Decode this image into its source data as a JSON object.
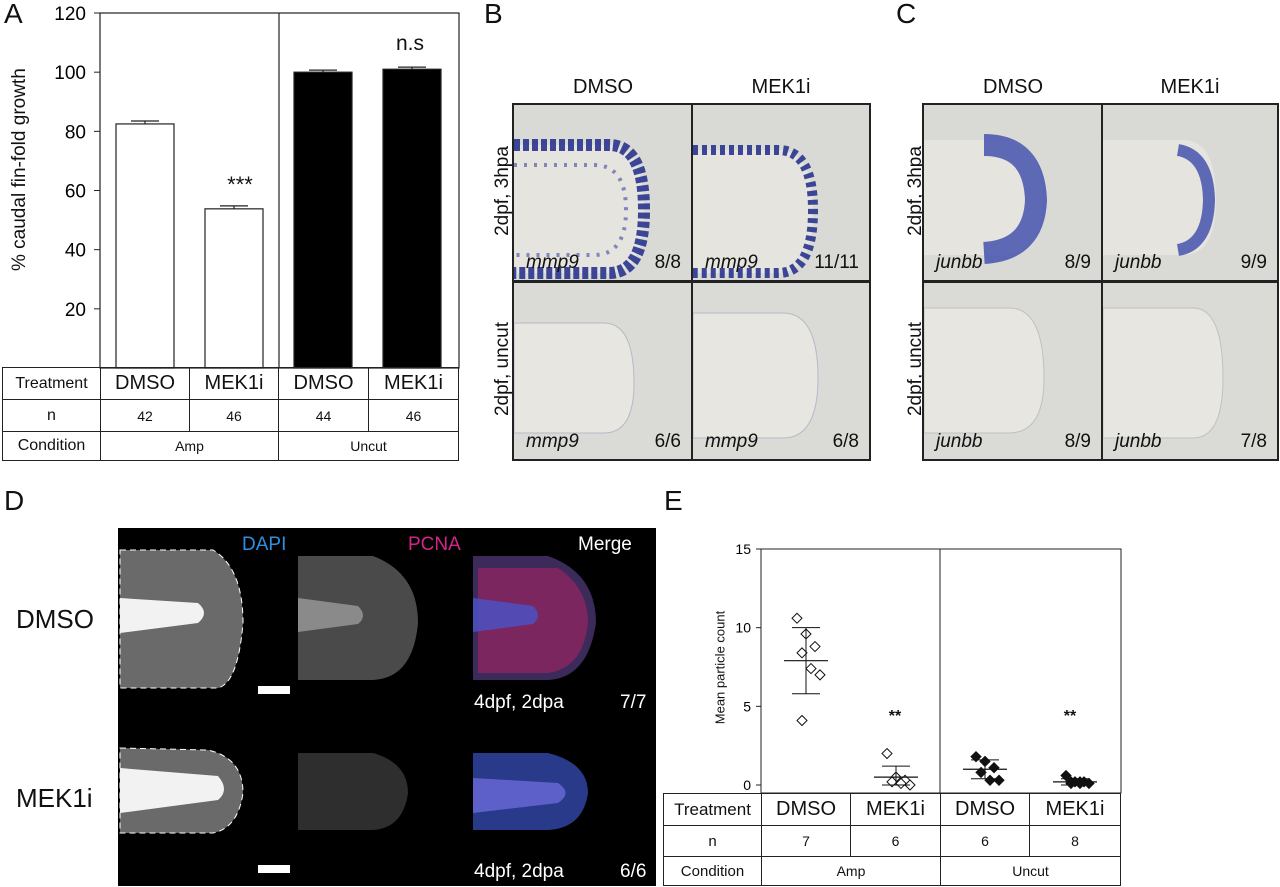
{
  "panels": {
    "A": {
      "letter": "A",
      "ylabel": "% caudal fin-fold growth",
      "yticks": [
        "120",
        "100",
        "80",
        "60",
        "40",
        "20"
      ],
      "significance": [
        "***",
        "n.s"
      ],
      "table": {
        "row_labels": [
          "Treatment",
          "n",
          "Condition"
        ],
        "treatments": [
          "DMSO",
          "MEK1i",
          "DMSO",
          "MEK1i"
        ],
        "n_values": [
          "42",
          "46",
          "44",
          "46"
        ],
        "conditions": [
          "Amp",
          "Uncut"
        ]
      }
    },
    "B": {
      "letter": "B",
      "col_heads": [
        "DMSO",
        "MEK1i"
      ],
      "row_heads": [
        "2dpf, 3hpa",
        "2dpf, uncut"
      ],
      "cells": [
        {
          "gene": "mmp9",
          "ratio": "8/8"
        },
        {
          "gene": "mmp9",
          "ratio": "11/11"
        },
        {
          "gene": "mmp9",
          "ratio": "6/6"
        },
        {
          "gene": "mmp9",
          "ratio": "6/8"
        }
      ]
    },
    "C": {
      "letter": "C",
      "col_heads": [
        "DMSO",
        "MEK1i"
      ],
      "row_heads": [
        "2dpf, 3hpa",
        "2dpf, uncut"
      ],
      "cells": [
        {
          "gene": "junbb",
          "ratio": "8/9"
        },
        {
          "gene": "junbb",
          "ratio": "9/9"
        },
        {
          "gene": "junbb",
          "ratio": "8/9"
        },
        {
          "gene": "junbb",
          "ratio": "7/8"
        }
      ]
    },
    "D": {
      "letter": "D",
      "channels": [
        "DAPI",
        "PCNA",
        "Merge"
      ],
      "channel_colors": [
        "#2f8fe0",
        "#d6248a",
        "#ffffff"
      ],
      "rows": [
        "DMSO",
        "MEK1i"
      ],
      "captions": [
        {
          "stage": "4dpf, 2dpa",
          "ratio": "7/7"
        },
        {
          "stage": "4dpf, 2dpa",
          "ratio": "6/6"
        }
      ]
    },
    "E": {
      "letter": "E",
      "ylabel": "Mean particle count",
      "yticks": [
        "15",
        "10",
        "5",
        "0"
      ],
      "significance": [
        "**",
        "**"
      ],
      "table": {
        "row_labels": [
          "Treatment",
          "n",
          "Condition"
        ],
        "treatments": [
          "DMSO",
          "MEK1i",
          "DMSO",
          "MEK1i"
        ],
        "n_values": [
          "7",
          "6",
          "6",
          "8"
        ],
        "conditions": [
          "Amp",
          "Uncut"
        ]
      }
    }
  },
  "chart_data": [
    {
      "type": "bar",
      "panel": "A",
      "categories": [
        "DMSO",
        "MEK1i",
        "DMSO",
        "MEK1i"
      ],
      "values": [
        82.5,
        53.8,
        100.0,
        101.0
      ],
      "errors": [
        1.0,
        1.0,
        0.7,
        0.7
      ],
      "fill": [
        "#ffffff",
        "#ffffff",
        "#000000",
        "#000000"
      ],
      "ylabel": "% caudal fin-fold growth",
      "ylim": [
        0,
        120
      ],
      "yticks": [
        20,
        40,
        60,
        80,
        100,
        120
      ]
    },
    {
      "type": "scatter",
      "panel": "E",
      "categories": [
        "DMSO",
        "MEK1i",
        "DMSO",
        "MEK1i"
      ],
      "groups": [
        {
          "points": [
            10.6,
            9.6,
            8.8,
            8.4,
            7.4,
            7.0,
            4.1
          ],
          "mean": 7.9,
          "sd": 2.1,
          "filled": false
        },
        {
          "points": [
            2.0,
            0.5,
            0.3,
            0.2,
            0.1,
            0.0
          ],
          "mean": 0.5,
          "sd": 0.7,
          "filled": false
        },
        {
          "points": [
            1.8,
            1.5,
            1.1,
            0.8,
            0.3,
            0.3
          ],
          "mean": 1.0,
          "sd": 0.6,
          "filled": true
        },
        {
          "points": [
            0.6,
            0.2,
            0.2,
            0.2,
            0.2,
            0.1,
            0.1,
            0.1
          ],
          "mean": 0.2,
          "sd": 0.2,
          "filled": true
        }
      ],
      "ylabel": "Mean particle count",
      "ylim": [
        0,
        15
      ],
      "yticks": [
        0,
        5,
        10,
        15
      ]
    }
  ]
}
